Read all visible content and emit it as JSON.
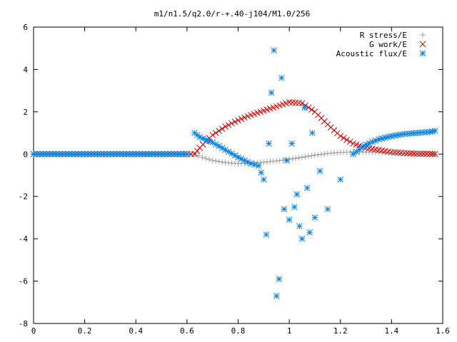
{
  "chart_data": {
    "type": "scatter",
    "title": "m1/n1.5/q2.0/r-+.40-j104/M1.0/256",
    "xlabel": "",
    "ylabel": "",
    "xlim": [
      0,
      1.6
    ],
    "ylim": [
      -8,
      6
    ],
    "x_ticks": [
      "0",
      "0.2",
      "0.4",
      "0.6",
      "0.8",
      "1",
      "1.2",
      "1.4",
      "1.6"
    ],
    "y_ticks": [
      "-8",
      "-6",
      "-4",
      "-2",
      "0",
      "2",
      "4",
      "6"
    ],
    "x_tick_values": [
      0,
      0.2,
      0.4,
      0.6,
      0.8,
      1.0,
      1.2,
      1.4,
      1.6
    ],
    "y_tick_values": [
      -8,
      -6,
      -4,
      -2,
      0,
      2,
      4,
      6
    ],
    "grid": false,
    "legend_position": "top-right",
    "series": [
      {
        "name": "R stress/E",
        "marker": "plus",
        "color": "#a0a0a0",
        "x": [
          0.0,
          0.1,
          0.2,
          0.3,
          0.4,
          0.5,
          0.6,
          0.63,
          0.66,
          0.7,
          0.75,
          0.8,
          0.85,
          0.9,
          0.95,
          1.0,
          1.05,
          1.1,
          1.15,
          1.2,
          1.25,
          1.3,
          1.35,
          1.4,
          1.45,
          1.5,
          1.55,
          1.57
        ],
        "y": [
          0,
          0,
          0,
          0,
          0,
          0,
          0,
          0,
          -0.15,
          -0.3,
          -0.4,
          -0.45,
          -0.42,
          -0.38,
          -0.32,
          -0.25,
          -0.15,
          -0.05,
          0.03,
          0.08,
          0.1,
          0.1,
          0.08,
          0.05,
          0.03,
          0.02,
          0.01,
          0
        ]
      },
      {
        "name": "G work/E",
        "marker": "cross",
        "color": "#cc0000",
        "x": [
          0.0,
          0.1,
          0.2,
          0.3,
          0.4,
          0.5,
          0.6,
          0.63,
          0.65,
          0.7,
          0.75,
          0.8,
          0.85,
          0.9,
          0.95,
          1.0,
          1.05,
          1.1,
          1.15,
          1.2,
          1.25,
          1.3,
          1.35,
          1.4,
          1.45,
          1.5,
          1.55,
          1.57
        ],
        "y": [
          0,
          0,
          0,
          0,
          0,
          0,
          0,
          0,
          0.3,
          0.9,
          1.3,
          1.6,
          1.85,
          2.05,
          2.25,
          2.45,
          2.4,
          2.0,
          1.4,
          0.85,
          0.5,
          0.3,
          0.2,
          0.1,
          0.05,
          0.02,
          0.01,
          0
        ]
      },
      {
        "name": "Acoustic flux/E",
        "marker": "star",
        "color": "#0080e0",
        "x": [
          0.0,
          0.1,
          0.2,
          0.3,
          0.4,
          0.5,
          0.6,
          0.63,
          0.65,
          0.7,
          0.75,
          0.8,
          0.85,
          0.88,
          0.9,
          0.91,
          0.92,
          0.93,
          0.94,
          0.95,
          0.96,
          0.97,
          0.98,
          0.99,
          1.0,
          1.01,
          1.02,
          1.03,
          1.04,
          1.05,
          1.06,
          1.07,
          1.08,
          1.09,
          1.1,
          1.12,
          1.15,
          1.2,
          1.25,
          1.3,
          1.35,
          1.4,
          1.45,
          1.5,
          1.55,
          1.57
        ],
        "y": [
          0,
          0,
          0,
          0,
          0,
          0,
          0,
          1.0,
          0.8,
          0.55,
          0.2,
          -0.15,
          -0.45,
          -0.55,
          -1.2,
          -3.8,
          0.5,
          2.9,
          4.9,
          -6.7,
          -5.9,
          3.6,
          -2.6,
          -0.3,
          -3.1,
          0.5,
          -2.5,
          -1.9,
          -3.4,
          -4.0,
          2.2,
          -1.6,
          -3.7,
          1.0,
          -3.0,
          -0.8,
          -2.6,
          -1.2,
          0.0,
          0.45,
          0.7,
          0.85,
          0.95,
          1.0,
          1.05,
          1.1
        ]
      }
    ]
  }
}
